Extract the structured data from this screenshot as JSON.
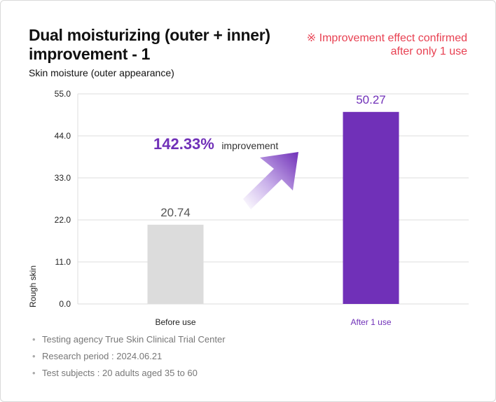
{
  "header": {
    "title": "Dual moisturizing (outer + inner) improvement - 1",
    "note_line1": "※ Improvement effect confirmed",
    "note_line2": "after only 1 use",
    "subtitle": "Skin moisture (outer appearance)"
  },
  "annotation": {
    "percent": "142.33%",
    "text": "improvement"
  },
  "footnotes": [
    "Testing agency True Skin Clinical Trial Center",
    "Research period : 2024.06.21",
    "Test subjects : 20 adults aged 35 to 60"
  ],
  "colors": {
    "before_bar": "#dcdcdc",
    "after_bar": "#7030b8",
    "note": "#e84152",
    "gridline": "#dddddd"
  },
  "chart_data": {
    "type": "bar",
    "categories": [
      "Before use",
      "After 1 use"
    ],
    "values": [
      20.74,
      50.27
    ],
    "value_labels": [
      "20.74",
      "50.27"
    ],
    "ylabel": "Rough skin",
    "ylim": [
      0,
      55
    ],
    "yticks": [
      "0.0",
      "11.0",
      "22.0",
      "33.0",
      "44.0",
      "55.0"
    ],
    "grid": true
  }
}
